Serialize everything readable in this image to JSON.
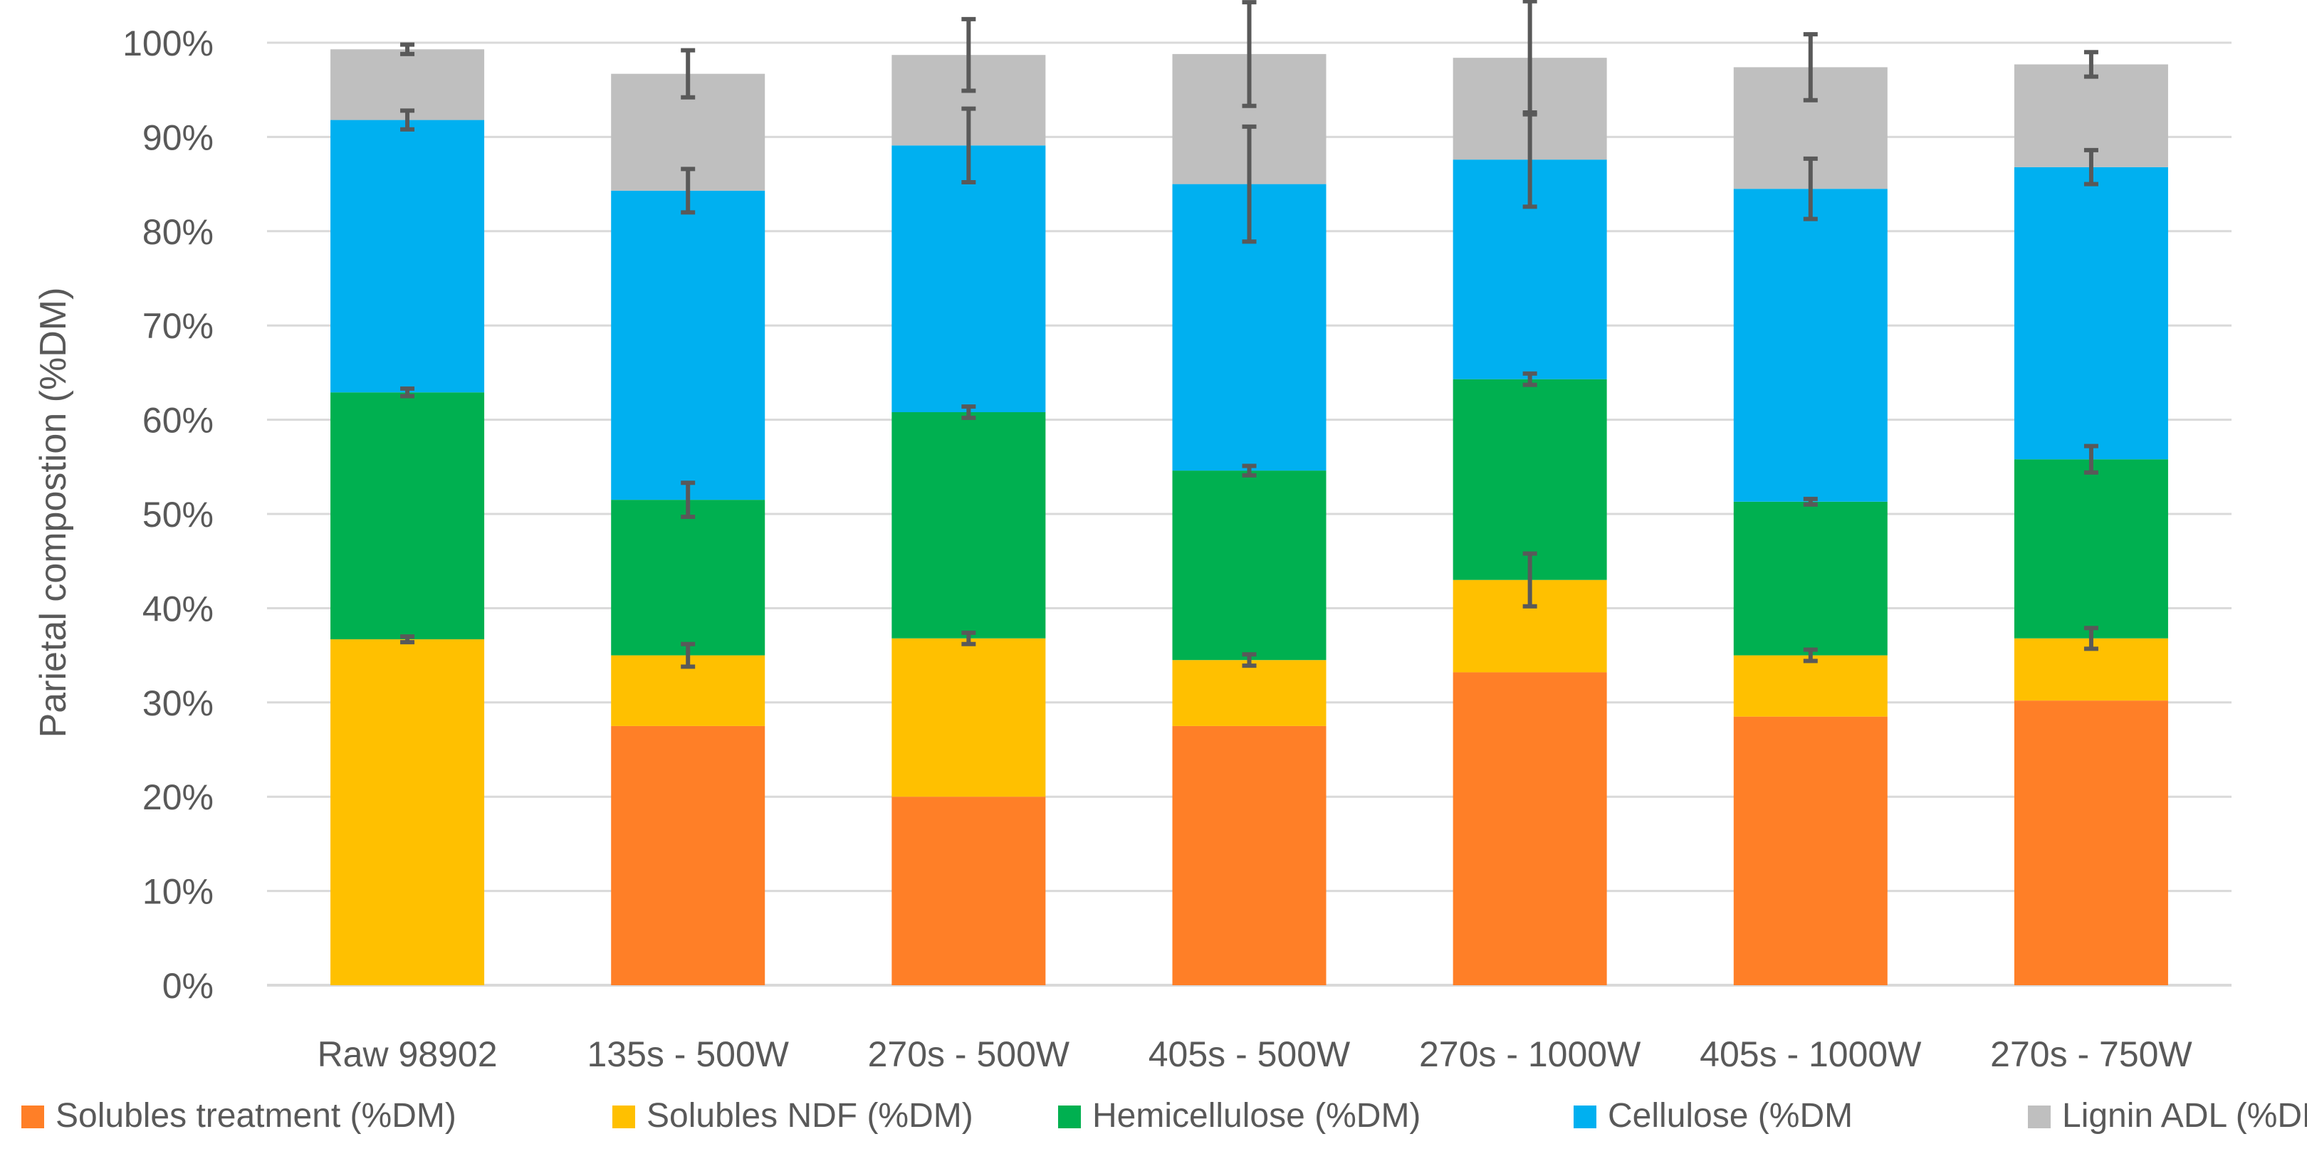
{
  "colors": {
    "solubles_treatment": "#FF7F27",
    "solubles_ndf": "#FFC000",
    "hemicellulose": "#00B050",
    "cellulose": "#00B0F0",
    "lignin": "#BFBFBF",
    "gridline": "#D9D9D9",
    "errorbar": "#595959"
  },
  "chart_data": {
    "type": "bar",
    "stacked": true,
    "title": "",
    "xlabel": "",
    "ylabel": "Parietal compostion (%DM)",
    "ylim": [
      0,
      100
    ],
    "yticks": [
      0,
      10,
      20,
      30,
      40,
      50,
      60,
      70,
      80,
      90,
      100
    ],
    "ytick_labels": [
      "0%",
      "10%",
      "20%",
      "30%",
      "40%",
      "50%",
      "60%",
      "70%",
      "80%",
      "90%",
      "100%"
    ],
    "grid": true,
    "legend_position": "bottom",
    "categories": [
      "Raw 98902",
      "135s - 500W",
      "270s - 500W",
      "405s - 500W",
      "270s - 1000W",
      "405s - 1000W",
      "270s - 750W"
    ],
    "series": [
      {
        "name": "Solubles treatment (%DM)",
        "color_key": "solubles_treatment",
        "values": [
          0,
          27.5,
          20,
          27.5,
          33.2,
          28.5,
          30.2
        ],
        "errors": [
          null,
          null,
          null,
          null,
          null,
          null,
          null
        ]
      },
      {
        "name": "Solubles NDF (%DM)",
        "color_key": "solubles_ndf",
        "values": [
          36.7,
          7.5,
          16.8,
          7,
          9.8,
          6.5,
          6.6
        ],
        "errors": [
          0.3,
          1.2,
          0.6,
          0.6,
          2.8,
          0.6,
          1.1
        ]
      },
      {
        "name": "Hemicellulose (%DM)",
        "color_key": "hemicellulose",
        "values": [
          26.2,
          16.5,
          24,
          20.1,
          21.3,
          16.3,
          19
        ],
        "errors": [
          0.4,
          1.8,
          0.6,
          0.5,
          0.6,
          0.3,
          1.4
        ]
      },
      {
        "name": "Cellulose (%DM",
        "color_key": "cellulose",
        "values": [
          28.9,
          32.8,
          28.3,
          30.4,
          23.3,
          33.2,
          31
        ],
        "errors": [
          1,
          2.3,
          3.9,
          6.1,
          5,
          3.2,
          1.8
        ]
      },
      {
        "name": "Lignin ADL (%DM)",
        "color_key": "lignin",
        "values": [
          7.5,
          12.4,
          9.6,
          13.8,
          10.8,
          12.9,
          10.9
        ],
        "errors": [
          0.5,
          2.5,
          3.8,
          5.5,
          6,
          3.5,
          1.3
        ]
      }
    ]
  }
}
